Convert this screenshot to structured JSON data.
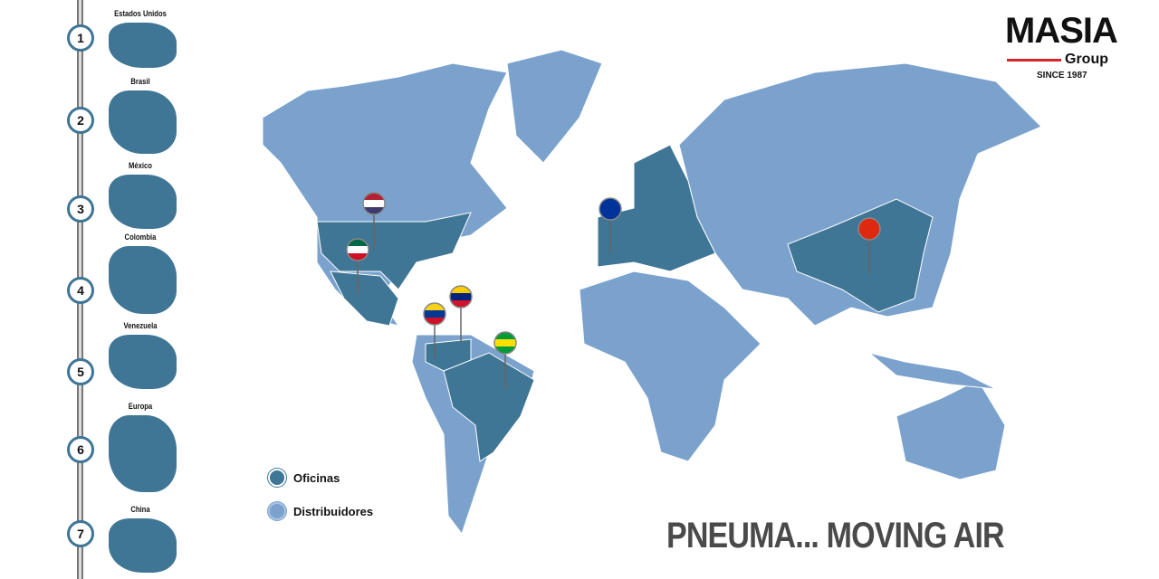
{
  "sidebar": {
    "items": [
      {
        "number": "1",
        "label": "Estados Unidos"
      },
      {
        "number": "2",
        "label": "Brasil"
      },
      {
        "number": "3",
        "label": "México"
      },
      {
        "number": "4",
        "label": "Colombia"
      },
      {
        "number": "5",
        "label": "Venezuela"
      },
      {
        "number": "6",
        "label": "Europa"
      },
      {
        "number": "7",
        "label": "China"
      }
    ]
  },
  "logo": {
    "name": "MASIA",
    "sub": "Group",
    "since": "SINCE 1987"
  },
  "legend": [
    {
      "label": "Oficinas",
      "color": "#3f7595"
    },
    {
      "label": "Distribuidores",
      "color": "#7aa2cd"
    }
  ],
  "colors": {
    "office": "#3f7595",
    "distributor": "#7aa2cd",
    "accent": "#d7262b"
  },
  "map": {
    "office_pins": [
      "United States",
      "Mexico",
      "Colombia",
      "Venezuela",
      "Brazil",
      "European Union",
      "China"
    ]
  },
  "tagline": "PNEUMA... MOVING AIR"
}
